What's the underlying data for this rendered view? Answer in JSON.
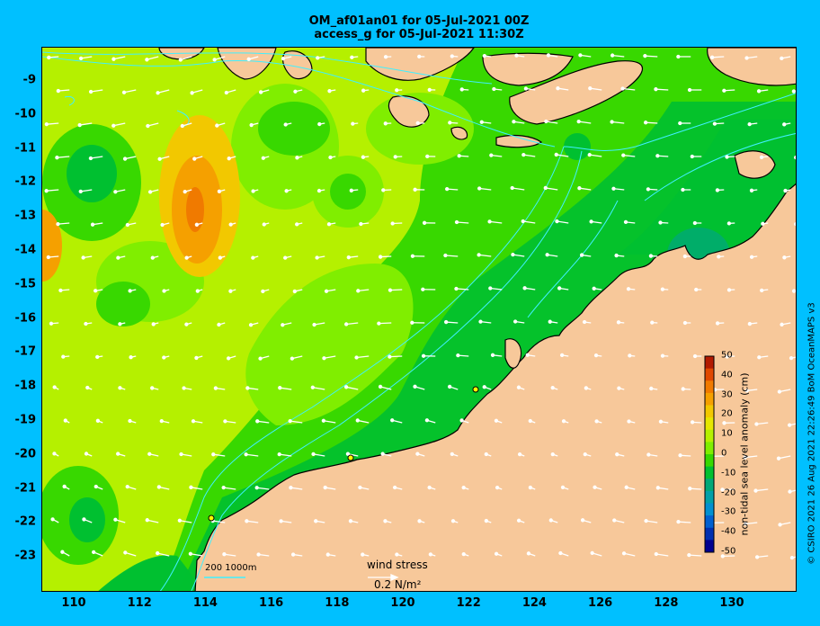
{
  "title_line1": "OM_af01an01 for 05-Jul-2021 00Z",
  "title_line2": "access_g for 05-Jul-2021 11:30Z",
  "lat_ticks": [
    "-9",
    "-10",
    "-11",
    "-12",
    "-13",
    "-14",
    "-15",
    "-16",
    "-17",
    "-18",
    "-19",
    "-20",
    "-21",
    "-22",
    "-23"
  ],
  "lon_ticks": [
    "110",
    "112",
    "114",
    "116",
    "118",
    "120",
    "122",
    "124",
    "126",
    "128",
    "130"
  ],
  "colorbar": {
    "title": "non-tidal sea level anomaly (cm)",
    "labels": [
      "50",
      "40",
      "30",
      "20",
      "10",
      "0",
      "-10",
      "-20",
      "-30",
      "-40",
      "-50"
    ],
    "colors": [
      "#b21a00",
      "#e04800",
      "#f07a00",
      "#f5a000",
      "#f2c800",
      "#e6e600",
      "#b5f000",
      "#80ee00",
      "#38d800",
      "#00c030",
      "#00a878",
      "#00a0a8",
      "#0090d0",
      "#0060d0",
      "#0030b0",
      "#000090"
    ]
  },
  "legend": {
    "wind_label": "wind stress",
    "wind_value": "0.2 N/m²",
    "scale_label": "200  1000m"
  },
  "credit": "© CSIRO 2021  26 Aug 2021 22:26:49 BoM OceanMAPS v3",
  "colors": {
    "land": "#f7c89a",
    "background": "#00c0ff",
    "isobath": "#40f0ff",
    "arrow": "#ffffff"
  }
}
